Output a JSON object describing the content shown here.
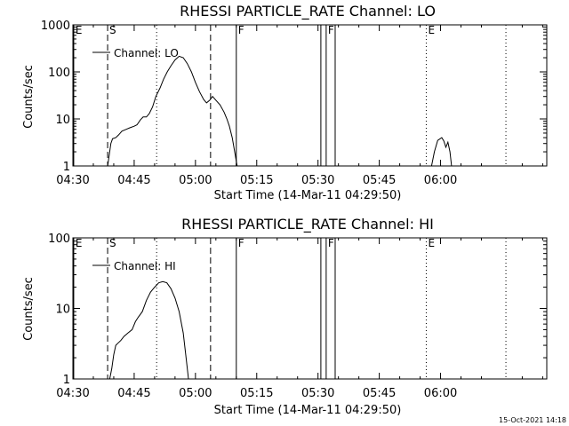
{
  "chart_data": [
    {
      "type": "line",
      "title": "RHESSI PARTICLE_RATE Channel: LO",
      "xlabel": "Start Time (14-Mar-11 04:29:50)",
      "ylabel": "Counts/sec",
      "yscale": "log",
      "xlim_minutes": [
        270,
        386
      ],
      "ylim": [
        1,
        1000
      ],
      "x_ticks": [
        {
          "label": "04:30",
          "minutes": 270
        },
        {
          "label": "04:45",
          "minutes": 285
        },
        {
          "label": "05:00",
          "minutes": 300
        },
        {
          "label": "05:15",
          "minutes": 315
        },
        {
          "label": "05:30",
          "minutes": 330
        },
        {
          "label": "05:45",
          "minutes": 345
        },
        {
          "label": "06:00",
          "minutes": 360
        }
      ],
      "y_ticks": [
        {
          "label": "1",
          "value": 1
        },
        {
          "label": "10",
          "value": 10
        },
        {
          "label": "100",
          "value": 100
        },
        {
          "label": "1000",
          "value": 1000
        }
      ],
      "legend": {
        "label": "Channel: LO",
        "placement": "top-left"
      },
      "markers": [
        {
          "label": "E",
          "minutes": 270.2,
          "style": "solid"
        },
        {
          "label": "S",
          "minutes": 278.5,
          "style": "dashed"
        },
        {
          "label": "",
          "minutes": 290.5,
          "style": "dotted"
        },
        {
          "label": "",
          "minutes": 303.7,
          "style": "dashed"
        },
        {
          "label": "F",
          "minutes": 310,
          "style": "solid"
        },
        {
          "label": "",
          "minutes": 330.7,
          "style": "solid"
        },
        {
          "label": "F",
          "minutes": 332,
          "style": "solid"
        },
        {
          "label": "",
          "minutes": 334.2,
          "style": "solid"
        },
        {
          "label": "E",
          "minutes": 356.5,
          "style": "dotted"
        },
        {
          "label": "",
          "minutes": 376,
          "style": "dotted"
        }
      ],
      "series": [
        {
          "name": "Channel: LO",
          "points": [
            [
              278.5,
              1
            ],
            [
              279.3,
              3
            ],
            [
              279.7,
              3.8
            ],
            [
              280.5,
              4
            ],
            [
              281.2,
              4.6
            ],
            [
              282,
              5.5
            ],
            [
              283,
              6
            ],
            [
              284,
              6.5
            ],
            [
              285,
              7
            ],
            [
              285.7,
              7.5
            ],
            [
              286.5,
              9.5
            ],
            [
              287.2,
              11
            ],
            [
              288,
              11
            ],
            [
              288.7,
              13
            ],
            [
              289.5,
              18
            ],
            [
              290.3,
              30
            ],
            [
              291.3,
              45
            ],
            [
              292.2,
              70
            ],
            [
              293.1,
              100
            ],
            [
              294,
              135
            ],
            [
              295,
              180
            ],
            [
              296,
              215
            ],
            [
              297,
              200
            ],
            [
              298,
              150
            ],
            [
              299,
              100
            ],
            [
              300,
              60
            ],
            [
              301,
              38
            ],
            [
              302,
              26
            ],
            [
              302.7,
              22
            ],
            [
              303.5,
              25
            ],
            [
              304.2,
              30
            ],
            [
              305,
              25
            ],
            [
              306,
              20
            ],
            [
              307,
              14
            ],
            [
              307.7,
              10
            ],
            [
              308.3,
              7
            ],
            [
              309,
              4
            ],
            [
              309.7,
              1.8
            ],
            [
              310.2,
              1
            ]
          ]
        },
        {
          "name": "Channel: LO",
          "points": [
            [
              357.8,
              1
            ],
            [
              358.5,
              2
            ],
            [
              359.3,
              3.5
            ],
            [
              360.3,
              4
            ],
            [
              360.8,
              3.4
            ],
            [
              361.3,
              2.5
            ],
            [
              361.8,
              3.2
            ],
            [
              362.3,
              2
            ],
            [
              362.7,
              1
            ]
          ]
        }
      ]
    },
    {
      "type": "line",
      "title": "RHESSI PARTICLE_RATE Channel: HI",
      "xlabel": "Start Time (14-Mar-11 04:29:50)",
      "ylabel": "Counts/sec",
      "yscale": "log",
      "xlim_minutes": [
        270,
        386
      ],
      "ylim": [
        1,
        100
      ],
      "x_ticks": [
        {
          "label": "04:30",
          "minutes": 270
        },
        {
          "label": "04:45",
          "minutes": 285
        },
        {
          "label": "05:00",
          "minutes": 300
        },
        {
          "label": "05:15",
          "minutes": 315
        },
        {
          "label": "05:30",
          "minutes": 330
        },
        {
          "label": "05:45",
          "minutes": 345
        },
        {
          "label": "06:00",
          "minutes": 360
        }
      ],
      "y_ticks": [
        {
          "label": "1",
          "value": 1
        },
        {
          "label": "10",
          "value": 10
        },
        {
          "label": "100",
          "value": 100
        }
      ],
      "legend": {
        "label": "Channel: HI",
        "placement": "top-left"
      },
      "markers": [
        {
          "label": "E",
          "minutes": 270.2,
          "style": "solid"
        },
        {
          "label": "S",
          "minutes": 278.5,
          "style": "dashed"
        },
        {
          "label": "",
          "minutes": 290.5,
          "style": "dotted"
        },
        {
          "label": "",
          "minutes": 303.7,
          "style": "dashed"
        },
        {
          "label": "F",
          "minutes": 310,
          "style": "solid"
        },
        {
          "label": "",
          "minutes": 330.7,
          "style": "solid"
        },
        {
          "label": "F",
          "minutes": 332,
          "style": "solid"
        },
        {
          "label": "",
          "minutes": 334.2,
          "style": "solid"
        },
        {
          "label": "E",
          "minutes": 356.5,
          "style": "dotted"
        },
        {
          "label": "",
          "minutes": 376,
          "style": "dotted"
        }
      ],
      "series": [
        {
          "name": "Channel: HI",
          "points": [
            [
              279,
              1
            ],
            [
              279.5,
              1.4
            ],
            [
              280,
              2.2
            ],
            [
              280.5,
              3
            ],
            [
              281,
              3.2
            ],
            [
              281.7,
              3.5
            ],
            [
              282.5,
              4
            ],
            [
              283.5,
              4.5
            ],
            [
              284.5,
              5
            ],
            [
              285.3,
              6.5
            ],
            [
              286,
              7.5
            ],
            [
              287,
              9
            ],
            [
              288,
              13
            ],
            [
              289,
              17
            ],
            [
              290,
              20
            ],
            [
              291,
              23
            ],
            [
              292,
              24
            ],
            [
              293,
              23
            ],
            [
              294,
              19
            ],
            [
              295,
              14
            ],
            [
              296,
              9
            ],
            [
              297,
              4.5
            ],
            [
              297.7,
              2
            ],
            [
              298.3,
              1
            ]
          ]
        }
      ]
    }
  ],
  "footer": {
    "date_stamp": "15-Oct-2021 14:18"
  }
}
